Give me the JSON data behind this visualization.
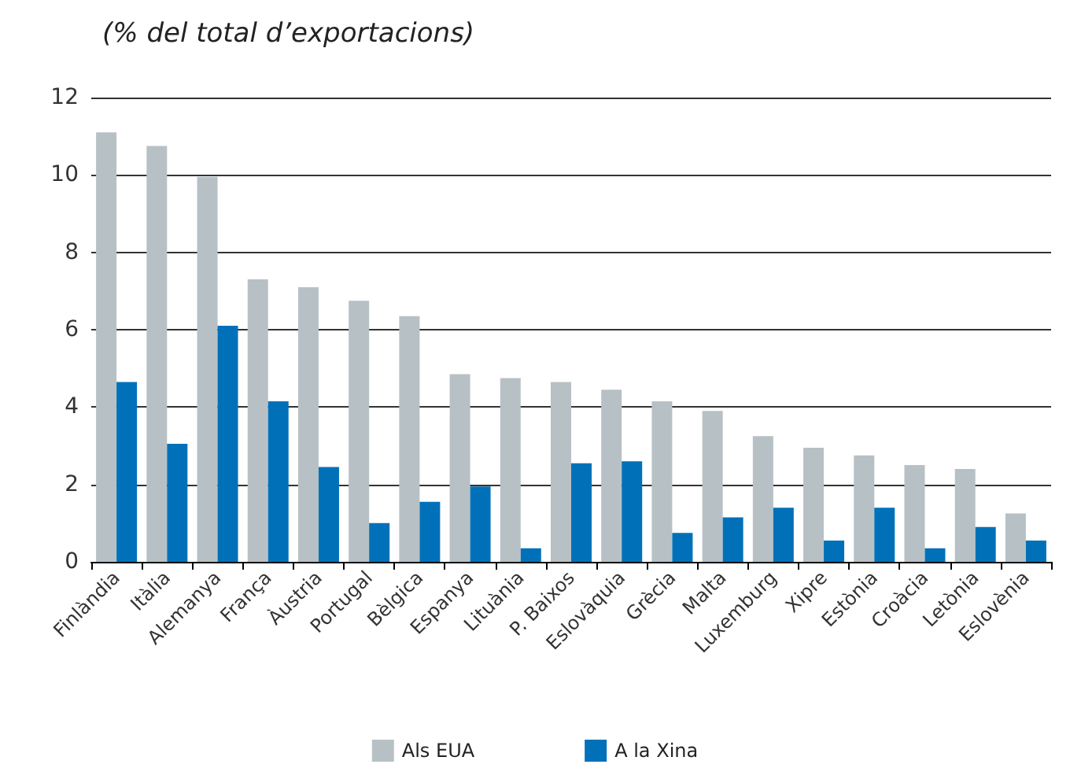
{
  "chart_data": {
    "type": "bar",
    "subtitle": "(% del total d’exportacions)",
    "categories": [
      "Finlàndia",
      "Itàlia",
      "Alemanya",
      "França",
      "Àustria",
      "Portugal",
      "Bèlgica",
      "Espanya",
      "Lituània",
      "P. Baixos",
      "Eslovàquia",
      "Grècia",
      "Malta",
      "Luxemburg",
      "Xipre",
      "Estònia",
      "Croàcia",
      "Letònia",
      "Eslovènia"
    ],
    "series": [
      {
        "name": "Als EUA",
        "color": "#b7c1c5",
        "values": [
          11.1,
          10.75,
          9.95,
          7.3,
          7.1,
          6.75,
          6.35,
          4.85,
          4.75,
          4.65,
          4.45,
          4.15,
          3.9,
          3.25,
          2.95,
          2.75,
          2.5,
          2.4,
          1.25
        ]
      },
      {
        "name": "A la Xina",
        "color": "#0071b9",
        "values": [
          4.65,
          3.05,
          6.1,
          4.15,
          2.45,
          1.0,
          1.55,
          1.95,
          0.35,
          2.55,
          2.6,
          0.75,
          1.15,
          1.4,
          0.55,
          1.4,
          0.35,
          0.9,
          0.55
        ]
      }
    ],
    "ylim": [
      0,
      12
    ],
    "yticks": [
      0,
      2,
      4,
      6,
      8,
      10,
      12
    ],
    "grid": "y",
    "legend": "bottom"
  }
}
